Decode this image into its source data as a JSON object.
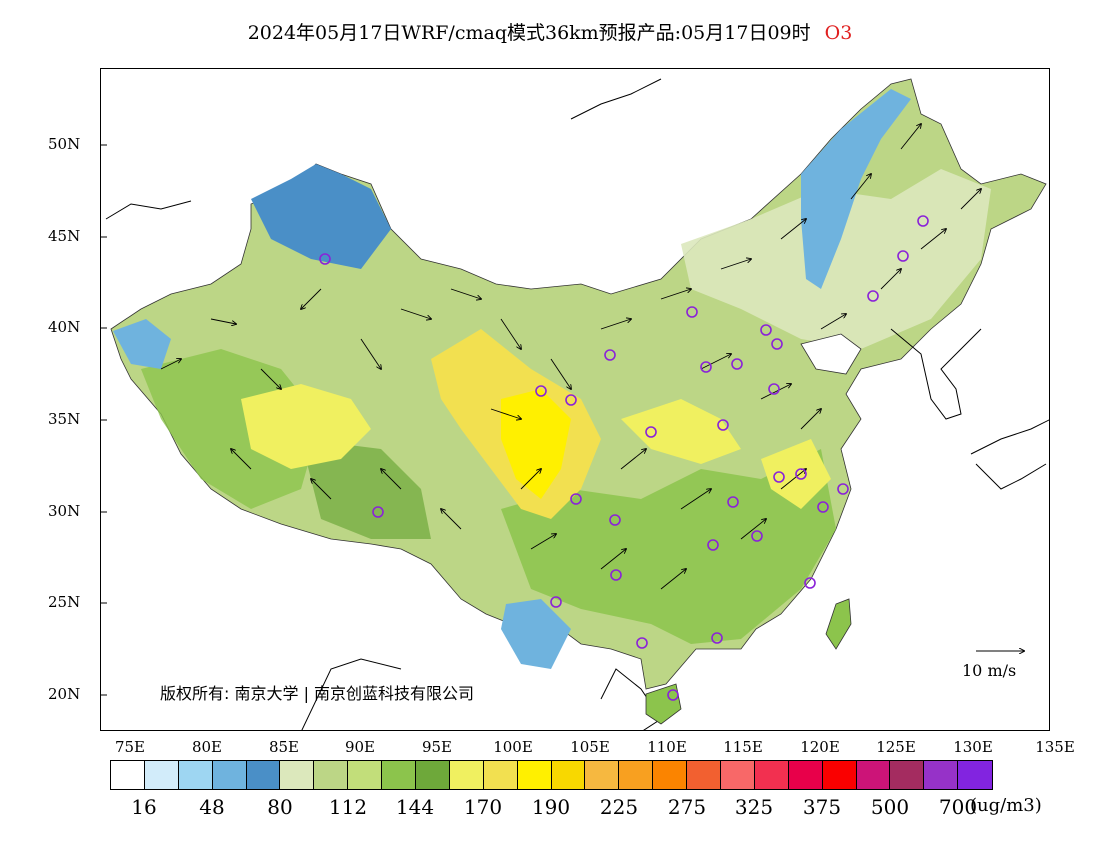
{
  "title": {
    "text": "2024年05月17日WRF/cmaq模式36km预报产品:05月17日09时",
    "variable": "O3"
  },
  "axes": {
    "lat_labels": [
      "50N",
      "45N",
      "40N",
      "35N",
      "30N",
      "25N",
      "20N"
    ],
    "lon_labels": [
      "75E",
      "80E",
      "85E",
      "90E",
      "95E",
      "100E",
      "105E",
      "110E",
      "115E",
      "120E",
      "125E",
      "130E",
      "135E"
    ]
  },
  "copyright": "版权所有: 南京大学 | 南京创蓝科技有限公司",
  "wind_reference": "10 m/s",
  "colorbar": {
    "colors": [
      "#ffffff",
      "#d2ecfa",
      "#9ed6f2",
      "#6fb3de",
      "#4a8fc7",
      "#dce8bc",
      "#bcd686",
      "#c2de7a",
      "#8cc44c",
      "#6ea83a",
      "#f0f060",
      "#f2e050",
      "#fff000",
      "#f8d800",
      "#f6b840",
      "#f8a020",
      "#fb8400",
      "#f26030",
      "#f86868",
      "#f23050",
      "#e8004a",
      "#fa0000",
      "#cc1478",
      "#a42c60",
      "#9632c8",
      "#8224e0"
    ],
    "tick_labels": [
      "16",
      "48",
      "80",
      "112",
      "144",
      "170",
      "190",
      "225",
      "275",
      "325",
      "375",
      "500",
      "700"
    ],
    "unit": "(ug/m3)"
  }
}
